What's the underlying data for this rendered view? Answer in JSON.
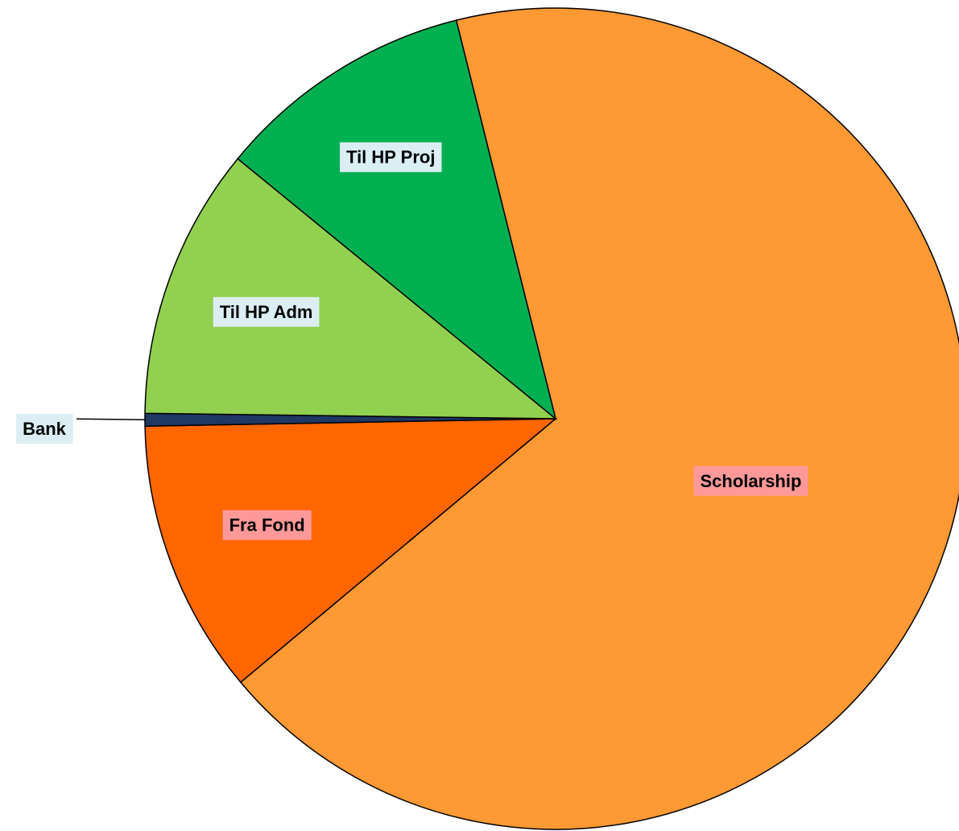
{
  "chart_data": {
    "type": "pie",
    "categories": [
      "Scholarship",
      "Fra Fond",
      "Bank",
      "Til HP Adm",
      "Til HP Proj"
    ],
    "values": [
      67.8,
      10.8,
      0.5,
      10.7,
      10.2
    ],
    "colors": [
      "#ff9933",
      "#ff6600",
      "#1f3864",
      "#92d050",
      "#00b050"
    ],
    "label_colors": [
      "#ff9999",
      "#ff9999",
      "#daeef3",
      "#daeef3",
      "#daeef3"
    ]
  }
}
